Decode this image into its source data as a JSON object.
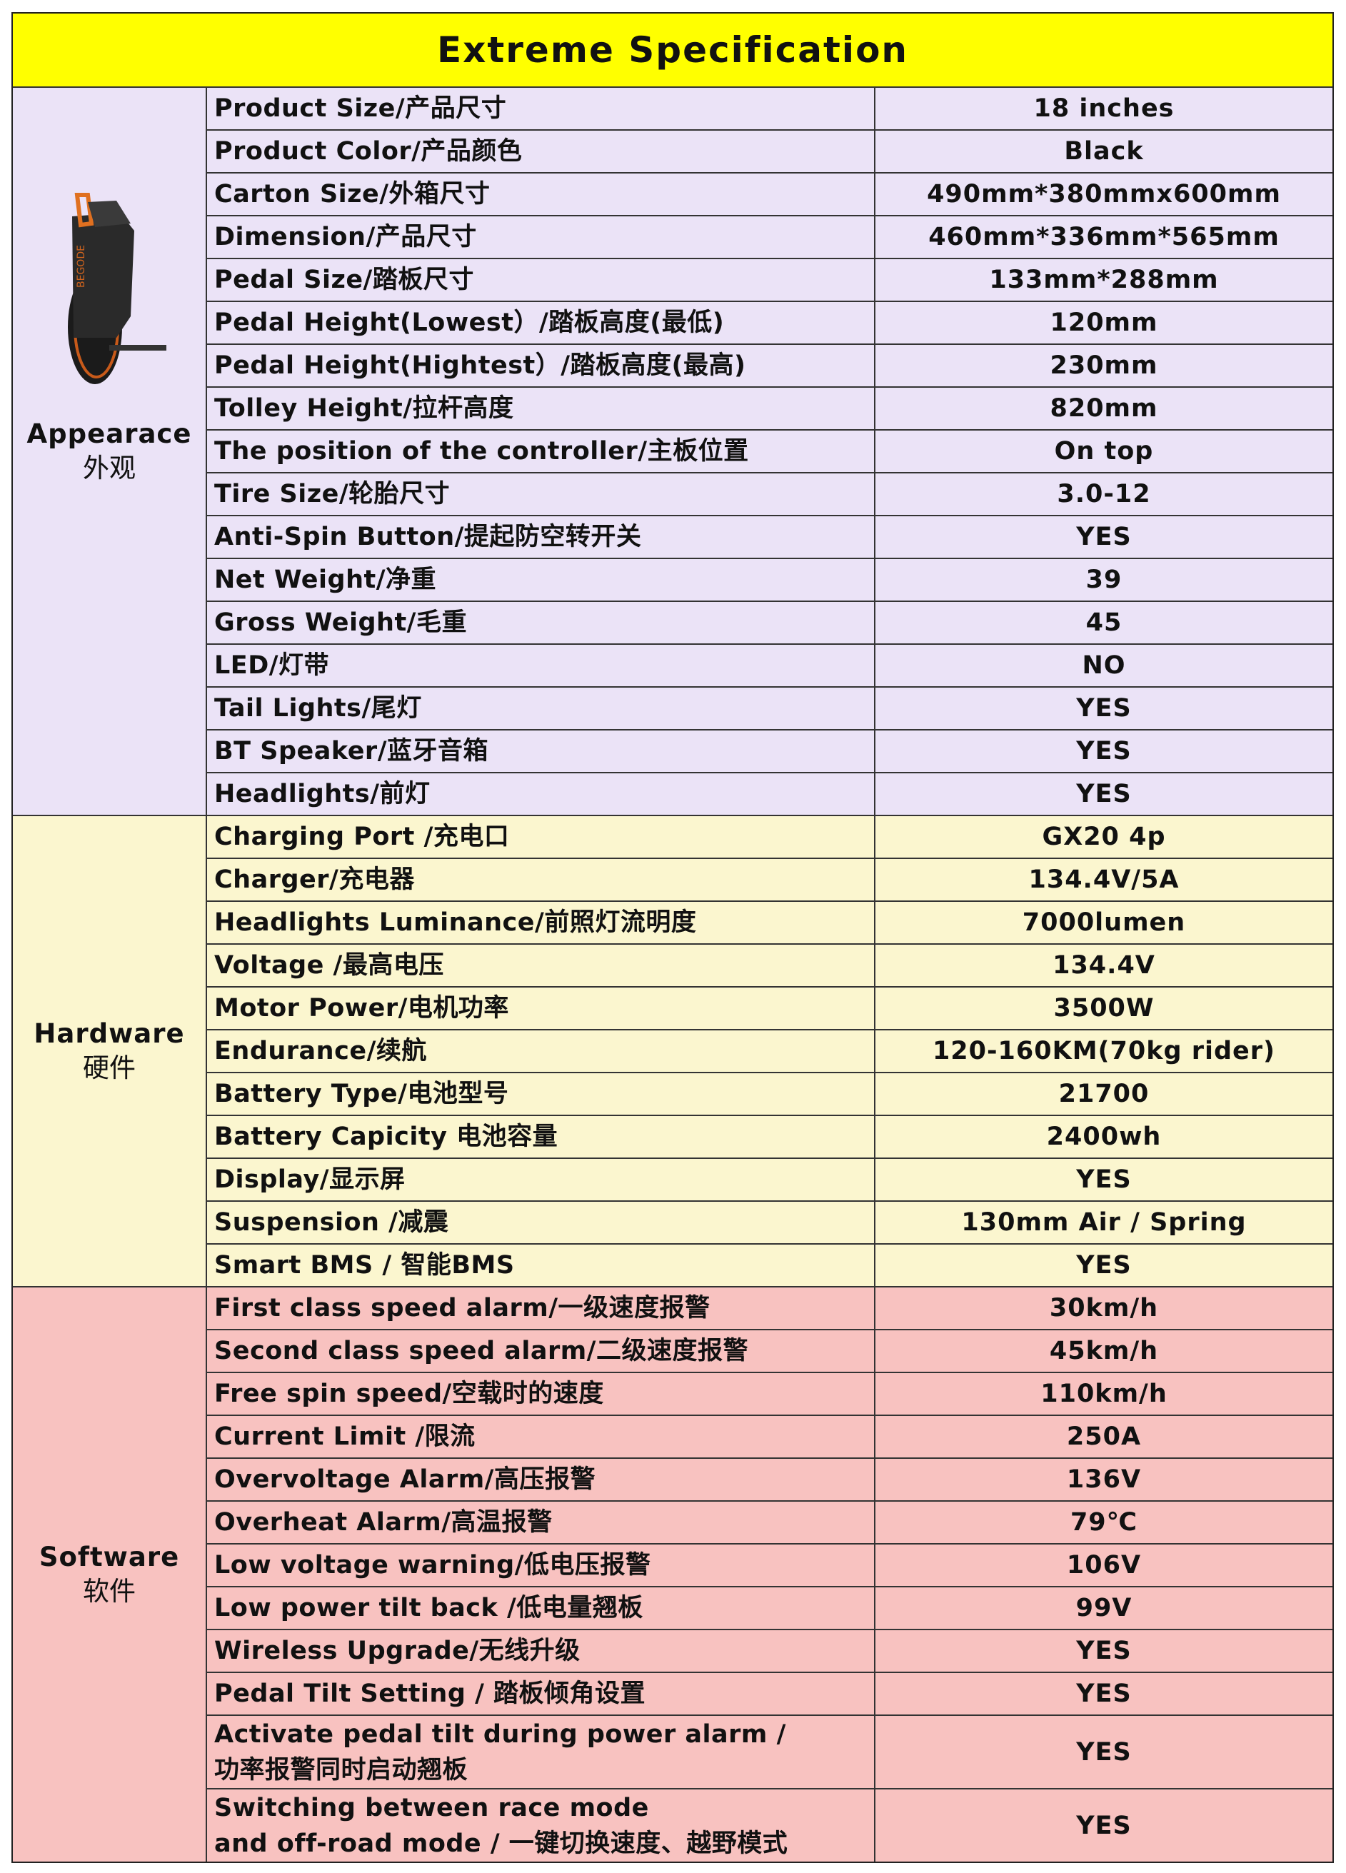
{
  "title": "Extreme Specification",
  "colors": {
    "title_bg": "#ffff00",
    "appearance_bg": "#ebe3f7",
    "hardware_bg": "#fbf6cf",
    "software_bg": "#f8c2c0"
  },
  "sections": [
    {
      "key": "appearance",
      "en": "Appearace",
      "zh": "外观",
      "image": "electric-unicycle-photo",
      "rows": [
        {
          "label": "Product Size/产品尺寸",
          "value": "18 inches"
        },
        {
          "label": "Product Color/产品颜色",
          "value": "Black"
        },
        {
          "label": "Carton Size/外箱尺寸",
          "value": "490mm*380mmx600mm"
        },
        {
          "label": "Dimension/产品尺寸",
          "value": "460mm*336mm*565mm"
        },
        {
          "label": "Pedal Size/踏板尺寸",
          "value": "133mm*288mm"
        },
        {
          "label": "Pedal Height(Lowest）/踏板高度(最低)",
          "value": "120mm"
        },
        {
          "label": "Pedal Height(Hightest）/踏板高度(最高)",
          "value": "230mm"
        },
        {
          "label": "Tolley Height/拉杆高度",
          "value": "820mm"
        },
        {
          "label": "The position of the controller/主板位置",
          "value": "On top"
        },
        {
          "label": "Tire Size/轮胎尺寸",
          "value": "3.0-12"
        },
        {
          "label": "Anti-Spin Button/提起防空转开关",
          "value": "YES"
        },
        {
          "label": "Net Weight/净重",
          "value": "39"
        },
        {
          "label": "Gross Weight/毛重",
          "value": "45"
        },
        {
          "label": "LED/灯带",
          "value": "NO"
        },
        {
          "label": "Tail Lights/尾灯",
          "value": "YES"
        },
        {
          "label": "BT Speaker/蓝牙音箱",
          "value": "YES"
        },
        {
          "label": "Headlights/前灯",
          "value": "YES"
        }
      ]
    },
    {
      "key": "hardware",
      "en": "Hardware",
      "zh": "硬件",
      "rows": [
        {
          "label": "Charging Port /充电口",
          "value": "GX20 4p"
        },
        {
          "label": "Charger/充电器",
          "value": "134.4V/5A"
        },
        {
          "label": "Headlights Luminance/前照灯流明度",
          "value": "7000lumen"
        },
        {
          "label": "Voltage /最高电压",
          "value": "134.4V"
        },
        {
          "label": "Motor Power/电机功率",
          "value": "3500W"
        },
        {
          "label": "Endurance/续航",
          "value": "120-160KM(70kg rider)"
        },
        {
          "label": "Battery Type/电池型号",
          "value": "21700"
        },
        {
          "label": "Battery Capicity 电池容量",
          "value": "2400wh"
        },
        {
          "label": "Display/显示屏",
          "value": "YES"
        },
        {
          "label": "Suspension /减震",
          "value": "130mm  Air / Spring"
        },
        {
          "label": "Smart  BMS / 智能BMS",
          "value": "YES"
        }
      ]
    },
    {
      "key": "software",
      "en": "Software",
      "zh": "软件",
      "rows": [
        {
          "label": "First class speed alarm/一级速度报警",
          "value": "30km/h"
        },
        {
          "label": "Second class speed alarm/二级速度报警",
          "value": "45km/h"
        },
        {
          "label": "Free spin speed/空载时的速度",
          "value": "110km/h"
        },
        {
          "label": "Current Limit /限流",
          "value": "250A"
        },
        {
          "label": "Overvoltage Alarm/高压报警",
          "value": "136V"
        },
        {
          "label": "Overheat Alarm/高温报警",
          "value": "79℃"
        },
        {
          "label": "Low voltage warning/低电压报警",
          "value": "106V"
        },
        {
          "label": "Low power tilt back /低电量翘板",
          "value": "99V"
        },
        {
          "label": "Wireless Upgrade/无线升级",
          "value": "YES"
        },
        {
          "label": "Pedal Tilt Setting / 踏板倾角设置",
          "value": "YES"
        },
        {
          "label": "Activate pedal tilt during power alarm /\n功率报警同时启动翘板",
          "value": "YES",
          "tall": true
        },
        {
          "label": "Switching between race mode\nand off-road mode / 一键切换速度、越野模式",
          "value": "YES",
          "tall": true
        }
      ]
    }
  ]
}
